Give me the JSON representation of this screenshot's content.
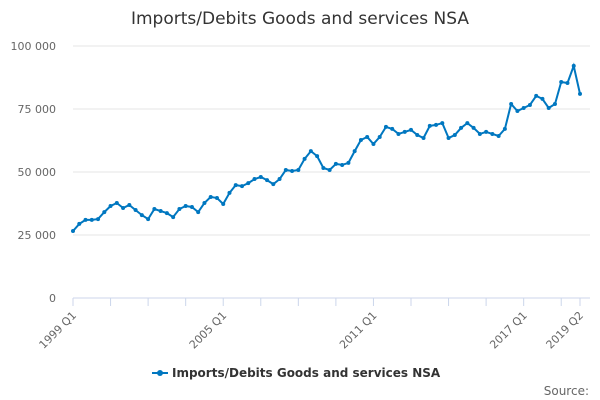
{
  "chart_data": {
    "type": "line",
    "title": "Imports/Debits Goods and services NSA",
    "xlabel": "",
    "ylabel": "",
    "ylim": [
      0,
      100000
    ],
    "yticks": [
      0,
      25000,
      50000,
      75000,
      100000
    ],
    "ytick_labels": [
      "0",
      "25 000",
      "50 000",
      "75 000",
      "100 000"
    ],
    "xtick_labels": [
      "1999 Q1",
      "2005 Q1",
      "2011 Q1",
      "2017 Q1",
      "2019 Q2"
    ],
    "grid": true,
    "legend_position": "bottom",
    "color": "#0077c0",
    "categories": [
      "1999 Q1",
      "1999 Q2",
      "1999 Q3",
      "1999 Q4",
      "2000 Q1",
      "2000 Q2",
      "2000 Q3",
      "2000 Q4",
      "2001 Q1",
      "2001 Q2",
      "2001 Q3",
      "2001 Q4",
      "2002 Q1",
      "2002 Q2",
      "2002 Q3",
      "2002 Q4",
      "2003 Q1",
      "2003 Q2",
      "2003 Q3",
      "2003 Q4",
      "2004 Q1",
      "2004 Q2",
      "2004 Q3",
      "2004 Q4",
      "2005 Q1",
      "2005 Q2",
      "2005 Q3",
      "2005 Q4",
      "2006 Q1",
      "2006 Q2",
      "2006 Q3",
      "2006 Q4",
      "2007 Q1",
      "2007 Q2",
      "2007 Q3",
      "2007 Q4",
      "2008 Q1",
      "2008 Q2",
      "2008 Q3",
      "2008 Q4",
      "2009 Q1",
      "2009 Q2",
      "2009 Q3",
      "2009 Q4",
      "2010 Q1",
      "2010 Q2",
      "2010 Q3",
      "2010 Q4",
      "2011 Q1",
      "2011 Q2",
      "2011 Q3",
      "2011 Q4",
      "2012 Q1",
      "2012 Q2",
      "2012 Q3",
      "2012 Q4",
      "2013 Q1",
      "2013 Q2",
      "2013 Q3",
      "2013 Q4",
      "2014 Q1",
      "2014 Q2",
      "2014 Q3",
      "2014 Q4",
      "2015 Q1",
      "2015 Q2",
      "2015 Q3",
      "2015 Q4",
      "2016 Q1",
      "2016 Q2",
      "2016 Q3",
      "2016 Q4",
      "2017 Q1",
      "2017 Q2",
      "2017 Q3",
      "2017 Q4",
      "2018 Q1",
      "2018 Q2",
      "2018 Q3",
      "2018 Q4",
      "2019 Q1",
      "2019 Q2"
    ],
    "series": [
      {
        "name": "Imports/Debits Goods and services NSA",
        "values": [
          26600,
          29400,
          31000,
          31000,
          31300,
          34100,
          36500,
          37700,
          35700,
          36900,
          34900,
          32900,
          31300,
          35300,
          34500,
          33700,
          32100,
          35300,
          36500,
          36100,
          34100,
          37700,
          40100,
          39700,
          37300,
          41700,
          44800,
          44400,
          45600,
          47200,
          48000,
          46800,
          45200,
          47200,
          50800,
          50400,
          50800,
          55200,
          58300,
          56300,
          51600,
          50800,
          53200,
          52800,
          53600,
          58300,
          62700,
          63900,
          61100,
          63900,
          67900,
          67100,
          65100,
          65900,
          66700,
          64700,
          63500,
          68300,
          68700,
          69400,
          63500,
          64700,
          67500,
          69400,
          67500,
          65100,
          65900,
          65100,
          64300,
          67100,
          77000,
          74200,
          75400,
          76600,
          80200,
          79000,
          75400,
          77000,
          85700,
          85300,
          92100,
          81000
        ]
      }
    ]
  },
  "source_label": "Source:"
}
